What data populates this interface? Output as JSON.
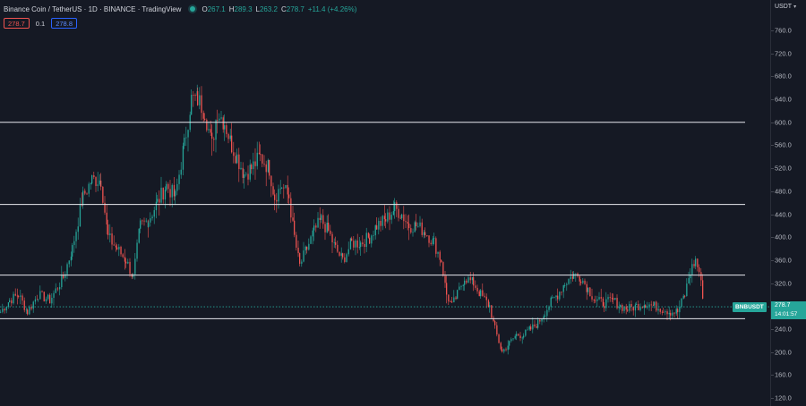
{
  "header": {
    "symbol_title": "Binance Coin / TetherUS · 1D · BINANCE · TradingView",
    "ohlc": {
      "o_label": "O",
      "o_value": "267.1",
      "h_label": "H",
      "h_value": "289.3",
      "l_label": "L",
      "l_value": "263.2",
      "c_label": "C",
      "c_value": "278.7",
      "change": "+11.4 (+4.26%)"
    }
  },
  "trade": {
    "sell": "278.7",
    "spread": "0.1",
    "buy": "278.8"
  },
  "price_scale": {
    "currency": "USDT",
    "ticks": [
      "760.0",
      "720.0",
      "680.0",
      "640.0",
      "600.0",
      "560.0",
      "520.0",
      "480.0",
      "440.0",
      "400.0",
      "360.0",
      "320.0",
      "280.0",
      "240.0",
      "200.0",
      "160.0",
      "120.0"
    ]
  },
  "last_price": {
    "symbol": "BNBUSDT",
    "price": "278.7",
    "countdown": "14:01:57"
  },
  "colors": {
    "up": "#26a69a",
    "down": "#ef5350",
    "background": "#151924",
    "hline": "#e6e8ee"
  },
  "chart_data": {
    "type": "candlestick",
    "horizontal_levels": [
      600,
      457,
      334,
      258
    ],
    "last_price_line": 278.7,
    "waypoints": [
      [
        0,
        270
      ],
      [
        10,
        290
      ],
      [
        20,
        300
      ],
      [
        30,
        270
      ],
      [
        42,
        300
      ],
      [
        55,
        290
      ],
      [
        70,
        330
      ],
      [
        80,
        380
      ],
      [
        92,
        470
      ],
      [
        102,
        500
      ],
      [
        112,
        500
      ],
      [
        120,
        400
      ],
      [
        130,
        380
      ],
      [
        140,
        360
      ],
      [
        148,
        330
      ],
      [
        156,
        420
      ],
      [
        165,
        430
      ],
      [
        175,
        460
      ],
      [
        185,
        490
      ],
      [
        195,
        470
      ],
      [
        205,
        560
      ],
      [
        213,
        640
      ],
      [
        220,
        640
      ],
      [
        228,
        620
      ],
      [
        236,
        560
      ],
      [
        242,
        620
      ],
      [
        250,
        600
      ],
      [
        258,
        560
      ],
      [
        264,
        540
      ],
      [
        272,
        510
      ],
      [
        280,
        520
      ],
      [
        290,
        540
      ],
      [
        300,
        520
      ],
      [
        306,
        470
      ],
      [
        314,
        490
      ],
      [
        322,
        470
      ],
      [
        328,
        400
      ],
      [
        334,
        350
      ],
      [
        342,
        380
      ],
      [
        350,
        410
      ],
      [
        358,
        430
      ],
      [
        366,
        410
      ],
      [
        374,
        380
      ],
      [
        382,
        360
      ],
      [
        392,
        390
      ],
      [
        402,
        390
      ],
      [
        412,
        400
      ],
      [
        420,
        420
      ],
      [
        430,
        430
      ],
      [
        440,
        450
      ],
      [
        448,
        440
      ],
      [
        456,
        420
      ],
      [
        464,
        420
      ],
      [
        474,
        410
      ],
      [
        484,
        390
      ],
      [
        492,
        360
      ],
      [
        498,
        300
      ],
      [
        504,
        280
      ],
      [
        510,
        300
      ],
      [
        518,
        330
      ],
      [
        528,
        320
      ],
      [
        536,
        300
      ],
      [
        546,
        280
      ],
      [
        552,
        240
      ],
      [
        560,
        200
      ],
      [
        568,
        215
      ],
      [
        576,
        230
      ],
      [
        584,
        230
      ],
      [
        592,
        240
      ],
      [
        600,
        250
      ],
      [
        608,
        270
      ],
      [
        616,
        290
      ],
      [
        622,
        300
      ],
      [
        630,
        320
      ],
      [
        640,
        335
      ],
      [
        648,
        330
      ],
      [
        656,
        310
      ],
      [
        664,
        290
      ],
      [
        674,
        285
      ],
      [
        684,
        290
      ],
      [
        692,
        280
      ],
      [
        700,
        275
      ],
      [
        710,
        280
      ],
      [
        720,
        285
      ],
      [
        730,
        280
      ],
      [
        740,
        275
      ],
      [
        748,
        270
      ],
      [
        756,
        270
      ],
      [
        764,
        300
      ],
      [
        770,
        340
      ],
      [
        776,
        360
      ],
      [
        780,
        340
      ],
      [
        784,
        300
      ],
      [
        786,
        279
      ]
    ]
  }
}
